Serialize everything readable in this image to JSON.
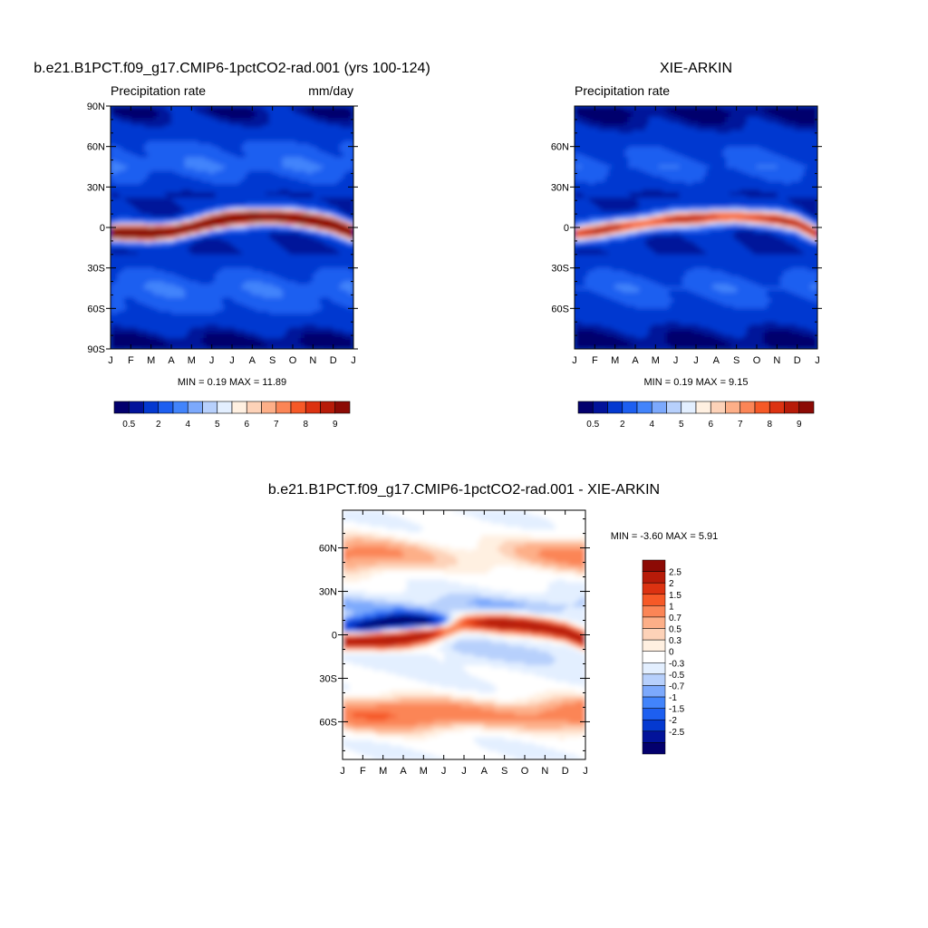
{
  "colors": {
    "seq": [
      "#03006d",
      "#02139a",
      "#0439d0",
      "#1d5ff0",
      "#4284fb",
      "#7ca9fc",
      "#b7d0fc",
      "#e3efff",
      "#fff0e1",
      "#fdd2b8",
      "#fdaf88",
      "#fb8556",
      "#f65927",
      "#dc3211",
      "#b71b09",
      "#8c0a05"
    ],
    "div": [
      "#03006d",
      "#02139a",
      "#0439d0",
      "#1d5ff0",
      "#4284fb",
      "#7ca9fc",
      "#b7d0fc",
      "#e3efff",
      "#ffffff",
      "#fff0e1",
      "#fdd2b8",
      "#fdaf88",
      "#fb8556",
      "#f65927",
      "#dc3211",
      "#b71b09",
      "#8c0a05"
    ]
  },
  "panels": [
    {
      "title": "b.e21.B1PCT.f09_g17.CMIP6-1pctCO2-rad.001 (yrs 100-124)",
      "left_label": "Precipitation rate",
      "right_label": "mm/day",
      "min_max": "MIN =   0.19 MAX =   11.89",
      "y_ticks": [
        "90N",
        "60N",
        "30N",
        "0",
        "30S",
        "60S",
        "90S"
      ],
      "x_ticks": [
        "J",
        "F",
        "M",
        "A",
        "M",
        "J",
        "J",
        "A",
        "S",
        "O",
        "N",
        "D",
        "J"
      ],
      "colorbar_labels": [
        "0.5",
        "2",
        "4",
        "5",
        "6",
        "7",
        "8",
        "9"
      ]
    },
    {
      "title": "XIE-ARKIN",
      "left_label": "Precipitation rate",
      "right_label": "",
      "min_max": "MIN =   0.19 MAX =   9.15",
      "y_ticks": [
        "60N",
        "30N",
        "0",
        "30S",
        "60S"
      ],
      "x_ticks": [
        "J",
        "F",
        "M",
        "A",
        "M",
        "J",
        "J",
        "A",
        "S",
        "O",
        "N",
        "D",
        "J"
      ],
      "colorbar_labels": [
        "0.5",
        "2",
        "4",
        "5",
        "6",
        "7",
        "8",
        "9"
      ]
    },
    {
      "title": "b.e21.B1PCT.f09_g17.CMIP6-1pctCO2-rad.001 - XIE-ARKIN",
      "min_max": "MIN =  -3.60 MAX =   5.91",
      "y_ticks": [
        "60N",
        "30N",
        "0",
        "30S",
        "60S"
      ],
      "x_ticks": [
        "J",
        "F",
        "M",
        "A",
        "M",
        "J",
        "J",
        "A",
        "S",
        "O",
        "N",
        "D",
        "J"
      ],
      "colorbar_labels": [
        "2.5",
        "2",
        "1.5",
        "1",
        "0.7",
        "0.5",
        "0.3",
        "0",
        "-0.3",
        "-0.5",
        "-0.7",
        "-1",
        "-1.5",
        "-2",
        "-2.5"
      ]
    }
  ],
  "chart_data": [
    {
      "type": "heatmap",
      "title": "b.e21.B1PCT.f09_g17.CMIP6-1pctCO2-rad.001 (yrs 100-124)",
      "ylabel": "Precipitation rate",
      "units": "mm/day",
      "x_categories": [
        "J",
        "F",
        "M",
        "A",
        "M",
        "J",
        "J",
        "A",
        "S",
        "O",
        "N",
        "D",
        "J"
      ],
      "ylim": [
        -90,
        90
      ],
      "min": 0.19,
      "max": 11.89,
      "levels": [
        0.5,
        1,
        2,
        3,
        4,
        4.5,
        5,
        5.5,
        6,
        6.5,
        7,
        7.5,
        8,
        8.5,
        9
      ],
      "itcz_lat_by_month": [
        -4,
        -4,
        -4,
        -3,
        0,
        4,
        7,
        8,
        8,
        7,
        5,
        2,
        -4
      ],
      "background_bands": [
        {
          "lat": 85,
          "value": 0.6
        },
        {
          "lat": 60,
          "value": 2.2
        },
        {
          "lat": 45,
          "value": 2.8
        },
        {
          "lat": 25,
          "value": 1.0
        },
        {
          "lat": -20,
          "value": 1.0
        },
        {
          "lat": -45,
          "value": 2.8
        },
        {
          "lat": -60,
          "value": 2.2
        },
        {
          "lat": -85,
          "value": 0.3
        }
      ],
      "itcz_peak_value": 11.5
    },
    {
      "type": "heatmap",
      "title": "XIE-ARKIN",
      "ylabel": "Precipitation rate",
      "x_categories": [
        "J",
        "F",
        "M",
        "A",
        "M",
        "J",
        "J",
        "A",
        "S",
        "O",
        "N",
        "D",
        "J"
      ],
      "min": 0.19,
      "max": 9.15,
      "levels": [
        0.5,
        1,
        2,
        3,
        4,
        4.5,
        5,
        5.5,
        6,
        6.5,
        7,
        7.5,
        8,
        8.5,
        9
      ],
      "itcz_lat_by_month": [
        -5,
        -3,
        0,
        2,
        4,
        6,
        7,
        8,
        8,
        7,
        6,
        3,
        -5
      ],
      "background_bands": [
        {
          "lat": 85,
          "value": 0.3
        },
        {
          "lat": 60,
          "value": 1.8
        },
        {
          "lat": 45,
          "value": 2.5
        },
        {
          "lat": 25,
          "value": 1.0
        },
        {
          "lat": -20,
          "value": 1.0
        },
        {
          "lat": -45,
          "value": 2.6
        },
        {
          "lat": -60,
          "value": 1.8
        },
        {
          "lat": -85,
          "value": 0.3
        }
      ],
      "itcz_peak_value": 8.5
    },
    {
      "type": "heatmap",
      "title": "b.e21.B1PCT.f09_g17.CMIP6-1pctCO2-rad.001 - XIE-ARKIN",
      "x_categories": [
        "J",
        "F",
        "M",
        "A",
        "M",
        "J",
        "J",
        "A",
        "S",
        "O",
        "N",
        "D",
        "J"
      ],
      "min": -3.6,
      "max": 5.91,
      "levels": [
        -2.5,
        -2,
        -1.5,
        -1,
        -0.7,
        -0.5,
        -0.3,
        0,
        0.3,
        0.5,
        0.7,
        1,
        1.5,
        2,
        2.5
      ],
      "features": [
        {
          "name": "positive anomaly along model ITCZ",
          "lat_by_month": [
            -4,
            -4,
            -4,
            -3,
            0,
            4,
            7,
            8,
            8,
            7,
            5,
            2,
            -4
          ],
          "value": 3.5
        },
        {
          "name": "negative anomaly north of ITCZ (Feb-May)",
          "lat_by_month": [
            5,
            6,
            8,
            10,
            9,
            7,
            6,
            6,
            5,
            4,
            3,
            3,
            5
          ],
          "value": -2.8
        },
        {
          "name": "southern mid-latitude positive band",
          "lat": -55,
          "value": 1.6
        },
        {
          "name": "northern mid-latitude positive band",
          "lat": 55,
          "value": 1.2
        }
      ]
    }
  ]
}
